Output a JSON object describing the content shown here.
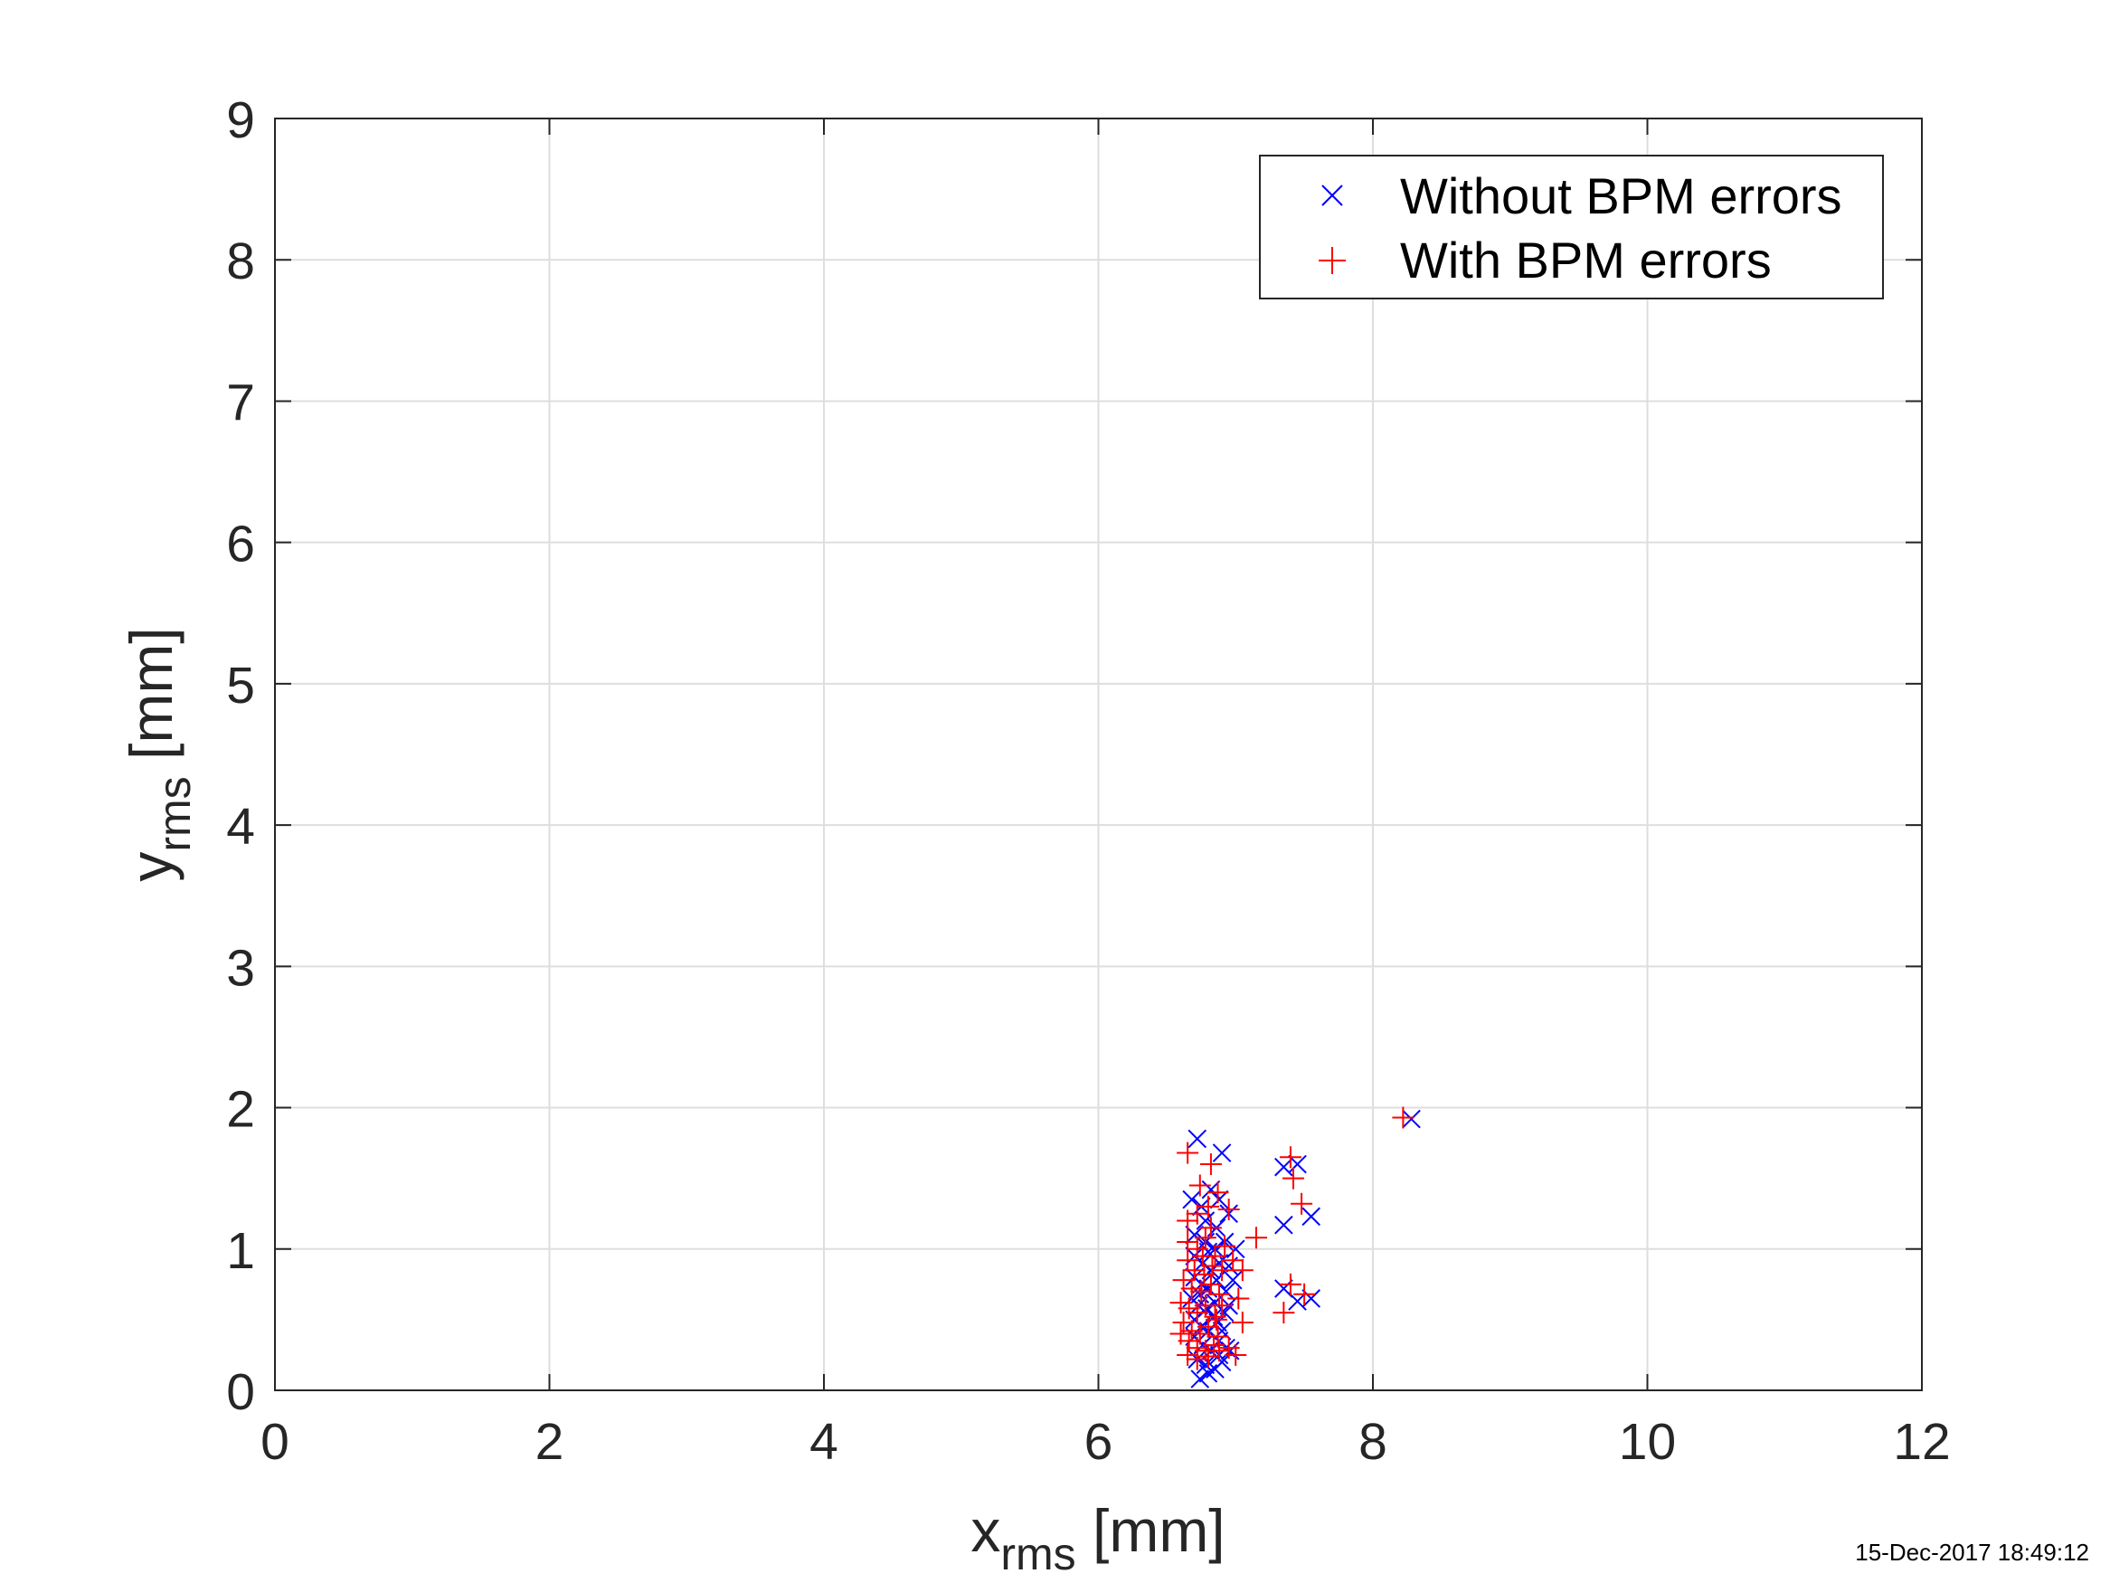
{
  "figure": {
    "timestamp": "15-Dec-2017 18:49:12"
  },
  "chart_data": {
    "type": "scatter",
    "xlabel": {
      "main": "x",
      "subscript": "rms",
      "suffix": " [mm]"
    },
    "ylabel": {
      "main": "y",
      "subscript": "rms",
      "suffix": " [mm]"
    },
    "xlim": [
      0,
      12
    ],
    "ylim": [
      0,
      9
    ],
    "xticks": [
      0,
      2,
      4,
      6,
      8,
      10,
      12
    ],
    "yticks": [
      0,
      1,
      2,
      3,
      4,
      5,
      6,
      7,
      8,
      9
    ],
    "grid": true,
    "legend_position": "top-right",
    "series": [
      {
        "name": "Without BPM errors",
        "marker": "x",
        "color": "#0000ff",
        "points": [
          [
            6.72,
            1.78
          ],
          [
            6.9,
            1.68
          ],
          [
            7.35,
            1.58
          ],
          [
            7.45,
            1.6
          ],
          [
            7.35,
            1.17
          ],
          [
            7.55,
            1.23
          ],
          [
            8.28,
            1.92
          ],
          [
            7.35,
            0.72
          ],
          [
            7.45,
            0.63
          ],
          [
            7.55,
            0.65
          ],
          [
            6.68,
            1.35
          ],
          [
            6.75,
            1.3
          ],
          [
            6.82,
            1.42
          ],
          [
            6.88,
            1.35
          ],
          [
            6.95,
            1.25
          ],
          [
            6.7,
            1.1
          ],
          [
            6.78,
            1.05
          ],
          [
            6.85,
            1.0
          ],
          [
            6.92,
            1.05
          ],
          [
            7.0,
            1.0
          ],
          [
            6.7,
            0.95
          ],
          [
            6.76,
            0.9
          ],
          [
            6.82,
            0.85
          ],
          [
            6.88,
            0.9
          ],
          [
            6.95,
            0.88
          ],
          [
            6.7,
            0.8
          ],
          [
            6.75,
            0.75
          ],
          [
            6.8,
            0.72
          ],
          [
            6.86,
            0.78
          ],
          [
            6.93,
            0.7
          ],
          [
            6.68,
            0.65
          ],
          [
            6.73,
            0.6
          ],
          [
            6.79,
            0.58
          ],
          [
            6.85,
            0.62
          ],
          [
            6.92,
            0.55
          ],
          [
            6.7,
            0.5
          ],
          [
            6.75,
            0.45
          ],
          [
            6.8,
            0.42
          ],
          [
            6.87,
            0.48
          ],
          [
            6.95,
            0.6
          ],
          [
            6.7,
            0.38
          ],
          [
            6.76,
            0.32
          ],
          [
            6.82,
            0.28
          ],
          [
            6.88,
            0.35
          ],
          [
            6.93,
            0.3
          ],
          [
            6.72,
            0.22
          ],
          [
            6.78,
            0.18
          ],
          [
            6.85,
            0.15
          ],
          [
            6.9,
            0.2
          ],
          [
            6.74,
            0.08
          ],
          [
            6.8,
            0.12
          ],
          [
            6.88,
            0.25
          ],
          [
            6.96,
            0.28
          ],
          [
            6.78,
            1.2
          ],
          [
            6.86,
            1.15
          ],
          [
            6.8,
            0.98
          ],
          [
            6.74,
            0.68
          ],
          [
            6.84,
            0.52
          ],
          [
            6.9,
            0.42
          ],
          [
            6.98,
            0.78
          ]
        ]
      },
      {
        "name": "With BPM errors",
        "marker": "+",
        "color": "#ff0000",
        "points": [
          [
            6.65,
            1.68
          ],
          [
            6.82,
            1.6
          ],
          [
            7.4,
            1.65
          ],
          [
            7.42,
            1.5
          ],
          [
            7.48,
            1.32
          ],
          [
            8.22,
            1.93
          ],
          [
            7.15,
            1.08
          ],
          [
            7.4,
            0.75
          ],
          [
            7.5,
            0.68
          ],
          [
            7.35,
            0.55
          ],
          [
            6.65,
            1.2
          ],
          [
            6.72,
            1.25
          ],
          [
            6.8,
            1.3
          ],
          [
            6.87,
            1.4
          ],
          [
            6.95,
            1.28
          ],
          [
            6.65,
            1.05
          ],
          [
            6.72,
            1.0
          ],
          [
            6.78,
            1.08
          ],
          [
            6.85,
            0.95
          ],
          [
            6.92,
            1.02
          ],
          [
            6.65,
            0.92
          ],
          [
            6.7,
            0.85
          ],
          [
            6.77,
            0.82
          ],
          [
            6.83,
            0.88
          ],
          [
            6.9,
            0.85
          ],
          [
            6.62,
            0.78
          ],
          [
            6.68,
            0.72
          ],
          [
            6.75,
            0.7
          ],
          [
            6.82,
            0.75
          ],
          [
            6.88,
            0.68
          ],
          [
            6.6,
            0.62
          ],
          [
            6.66,
            0.58
          ],
          [
            6.72,
            0.55
          ],
          [
            6.78,
            0.6
          ],
          [
            6.85,
            0.52
          ],
          [
            6.62,
            0.48
          ],
          [
            6.68,
            0.42
          ],
          [
            6.74,
            0.4
          ],
          [
            6.8,
            0.45
          ],
          [
            6.87,
            0.38
          ],
          [
            6.6,
            0.4
          ],
          [
            6.66,
            0.35
          ],
          [
            6.72,
            0.3
          ],
          [
            6.78,
            0.28
          ],
          [
            6.84,
            0.32
          ],
          [
            6.65,
            0.25
          ],
          [
            6.72,
            0.22
          ],
          [
            6.8,
            0.24
          ],
          [
            6.88,
            0.28
          ],
          [
            6.95,
            0.3
          ],
          [
            7.0,
            0.25
          ],
          [
            7.05,
            0.85
          ],
          [
            7.02,
            0.65
          ],
          [
            7.05,
            0.48
          ],
          [
            6.98,
            0.92
          ],
          [
            6.9,
            0.6
          ],
          [
            6.76,
            0.95
          ],
          [
            6.82,
            1.15
          ],
          [
            6.74,
            1.45
          ],
          [
            6.86,
            0.5
          ]
        ]
      }
    ]
  }
}
